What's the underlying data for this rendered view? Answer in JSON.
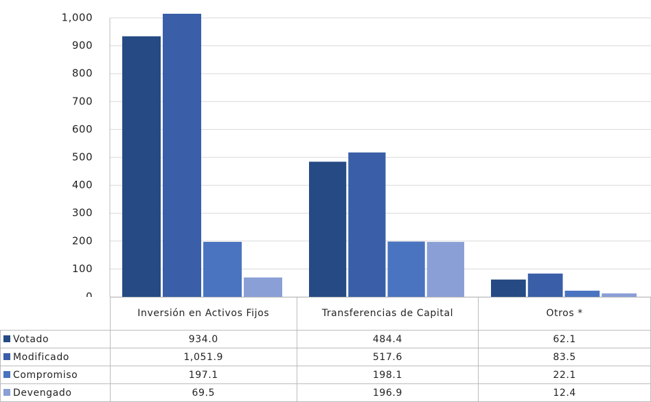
{
  "chart_data": {
    "type": "bar",
    "categories": [
      "Inversión en Activos Fijos",
      "Transferencias de Capital",
      "Otros *"
    ],
    "series": [
      {
        "name": "Votado",
        "color": "#264a84",
        "values": [
          934.0,
          484.4,
          62.1
        ],
        "value_labels": [
          "934.0",
          "484.4",
          "62.1"
        ]
      },
      {
        "name": "Modificado",
        "color": "#3a5fa8",
        "values": [
          1051.9,
          517.6,
          83.5
        ],
        "value_labels": [
          "1,051.9",
          "517.6",
          "83.5"
        ]
      },
      {
        "name": "Compromiso",
        "color": "#4a74c0",
        "values": [
          197.1,
          198.1,
          22.1
        ],
        "value_labels": [
          "197.1",
          "198.1",
          "22.1"
        ]
      },
      {
        "name": "Devengado",
        "color": "#8a9fd6",
        "values": [
          69.5,
          196.9,
          12.4
        ],
        "value_labels": [
          "69.5",
          "196.9",
          "12.4"
        ]
      }
    ],
    "ylim": [
      0,
      1000
    ],
    "yticks": [
      0,
      100,
      200,
      300,
      400,
      500,
      600,
      700,
      800,
      900,
      {
        "value": 1000,
        "label": "1,000"
      }
    ],
    "grid": true
  }
}
